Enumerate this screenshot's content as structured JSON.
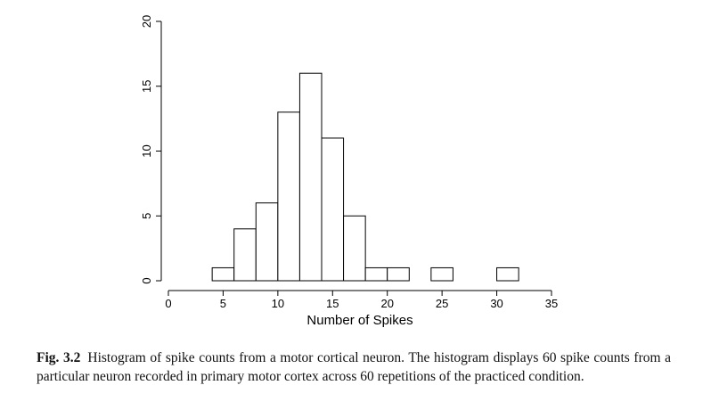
{
  "chart_data": {
    "type": "bar",
    "bin_width": 2,
    "bins": [
      {
        "x0": 4,
        "x1": 6,
        "count": 1
      },
      {
        "x0": 6,
        "x1": 8,
        "count": 4
      },
      {
        "x0": 8,
        "x1": 10,
        "count": 6
      },
      {
        "x0": 10,
        "x1": 12,
        "count": 13
      },
      {
        "x0": 12,
        "x1": 14,
        "count": 16
      },
      {
        "x0": 14,
        "x1": 16,
        "count": 11
      },
      {
        "x0": 16,
        "x1": 18,
        "count": 5
      },
      {
        "x0": 18,
        "x1": 20,
        "count": 1
      },
      {
        "x0": 20,
        "x1": 22,
        "count": 1
      },
      {
        "x0": 24,
        "x1": 26,
        "count": 1
      },
      {
        "x0": 30,
        "x1": 32,
        "count": 1
      }
    ],
    "xlabel": "Number of Spikes",
    "ylabel": "",
    "xlim": [
      0,
      35
    ],
    "ylim": [
      0,
      20
    ],
    "xticks": [
      0,
      5,
      10,
      15,
      20,
      25,
      30,
      35
    ],
    "yticks": [
      0,
      5,
      10,
      15,
      20
    ],
    "grid": false
  },
  "caption": {
    "label": "Fig. 3.2",
    "text": "Histogram of spike counts from a motor cortical neuron. The histogram displays 60 spike counts from a particular neuron recorded in primary motor cortex across 60 repetitions of the practiced condition."
  }
}
